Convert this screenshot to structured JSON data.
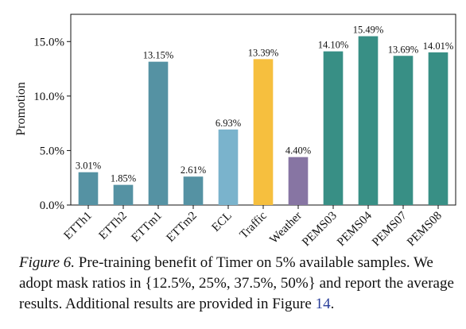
{
  "chart_data": {
    "type": "bar",
    "title": "",
    "xlabel": "",
    "ylabel": "Promotion",
    "ylim": [
      0,
      17.5
    ],
    "yticks": [
      0,
      5,
      10,
      15
    ],
    "ytick_labels": [
      "0.0%",
      "5.0%",
      "10.0%",
      "15.0%"
    ],
    "grid": false,
    "categories": [
      "ETTh1",
      "ETTh2",
      "ETTm1",
      "ETTm2",
      "ECL",
      "Traffic",
      "Weather",
      "PEMS03",
      "PEMS04",
      "PEMS07",
      "PEMS08"
    ],
    "values": [
      3.01,
      1.85,
      13.15,
      2.61,
      6.93,
      13.39,
      4.4,
      14.1,
      15.49,
      13.69,
      14.01
    ],
    "value_labels": [
      "3.01%",
      "1.85%",
      "13.15%",
      "2.61%",
      "6.93%",
      "13.39%",
      "4.40%",
      "14.10%",
      "15.49%",
      "13.69%",
      "14.01%"
    ],
    "colors": [
      "#5592a3",
      "#5592a3",
      "#5592a3",
      "#5592a3",
      "#7ab3cc",
      "#f6bf3e",
      "#8775a3",
      "#388f85",
      "#388f85",
      "#388f85",
      "#388f85"
    ]
  },
  "caption": {
    "label": "Figure 6.",
    "text_1": " Pre-training benefit of Timer on 5% available samples. We adopt mask ratios in {12.5%, 25%, 37.5%, 50%} and report the average results. Additional results are provided in Figure ",
    "ref": "14",
    "text_2": "."
  }
}
